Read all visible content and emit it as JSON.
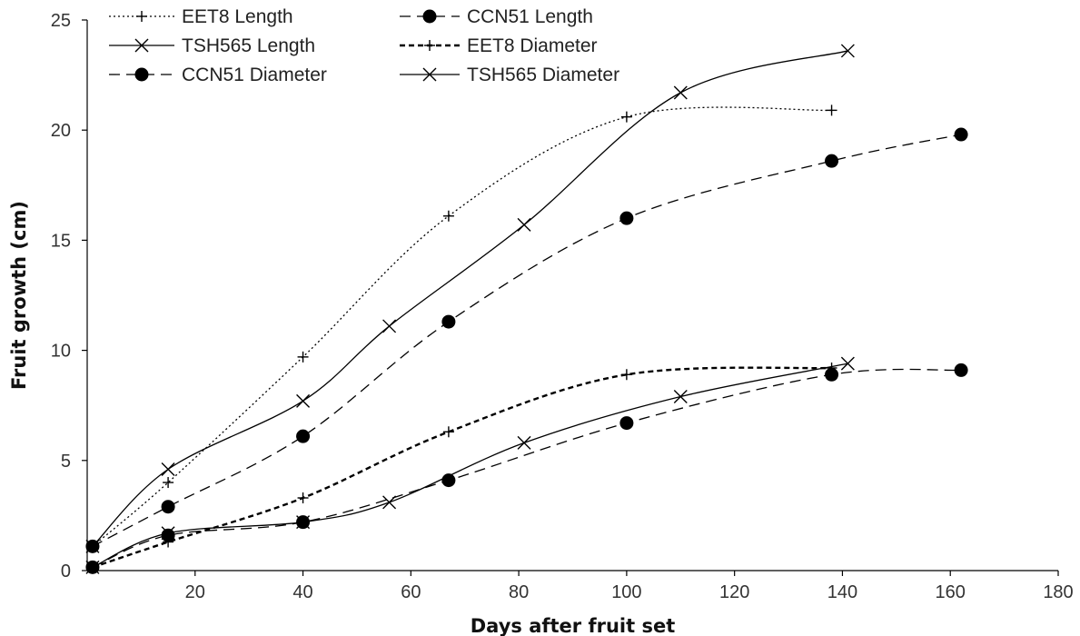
{
  "chart_data": {
    "type": "line",
    "title": "",
    "xlabel": "Days after fruit set",
    "ylabel": "Fruit growth (cm)",
    "xlim": [
      0,
      180
    ],
    "ylim": [
      0,
      25
    ],
    "x_ticks": [
      20,
      40,
      60,
      80,
      100,
      120,
      140,
      160,
      180
    ],
    "y_ticks": [
      0,
      5,
      10,
      15,
      20,
      25
    ],
    "grid": false,
    "legend_position": "top-left",
    "series": [
      {
        "name": "EET8 Length",
        "line_style": "dotted",
        "marker": "plus",
        "x": [
          1,
          15,
          40,
          67,
          100,
          138
        ],
        "y": [
          1.1,
          4.0,
          9.7,
          16.1,
          20.6,
          20.9
        ]
      },
      {
        "name": "CCN51 Length",
        "line_style": "dashed",
        "marker": "circle",
        "x": [
          1,
          15,
          40,
          67,
          100,
          138,
          162
        ],
        "y": [
          1.1,
          2.9,
          6.1,
          11.3,
          16.0,
          18.6,
          19.8
        ]
      },
      {
        "name": "TSH565 Length",
        "line_style": "solid",
        "marker": "cross",
        "x": [
          1,
          15,
          40,
          56,
          81,
          110,
          141
        ],
        "y": [
          1.1,
          4.6,
          7.7,
          11.1,
          15.7,
          21.7,
          23.6
        ]
      },
      {
        "name": "EET8 Diameter",
        "line_style": "short-dashed",
        "marker": "plus",
        "x": [
          1,
          15,
          40,
          67,
          100,
          138
        ],
        "y": [
          0.15,
          1.3,
          3.3,
          6.3,
          8.9,
          9.2
        ]
      },
      {
        "name": "CCN51 Diameter",
        "line_style": "dashed",
        "marker": "circle",
        "x": [
          1,
          15,
          40,
          67,
          100,
          138,
          162
        ],
        "y": [
          0.15,
          1.6,
          2.2,
          4.1,
          6.7,
          8.9,
          9.1
        ]
      },
      {
        "name": "TSH565 Diameter",
        "line_style": "solid",
        "marker": "cross",
        "x": [
          1,
          15,
          40,
          56,
          81,
          110,
          141
        ],
        "y": [
          0.15,
          1.7,
          2.2,
          3.1,
          5.8,
          7.9,
          9.4
        ]
      }
    ],
    "legend_order": [
      0,
      1,
      2,
      3,
      4,
      5
    ],
    "colors": {
      "line": "#000000",
      "background": "#ffffff"
    }
  }
}
